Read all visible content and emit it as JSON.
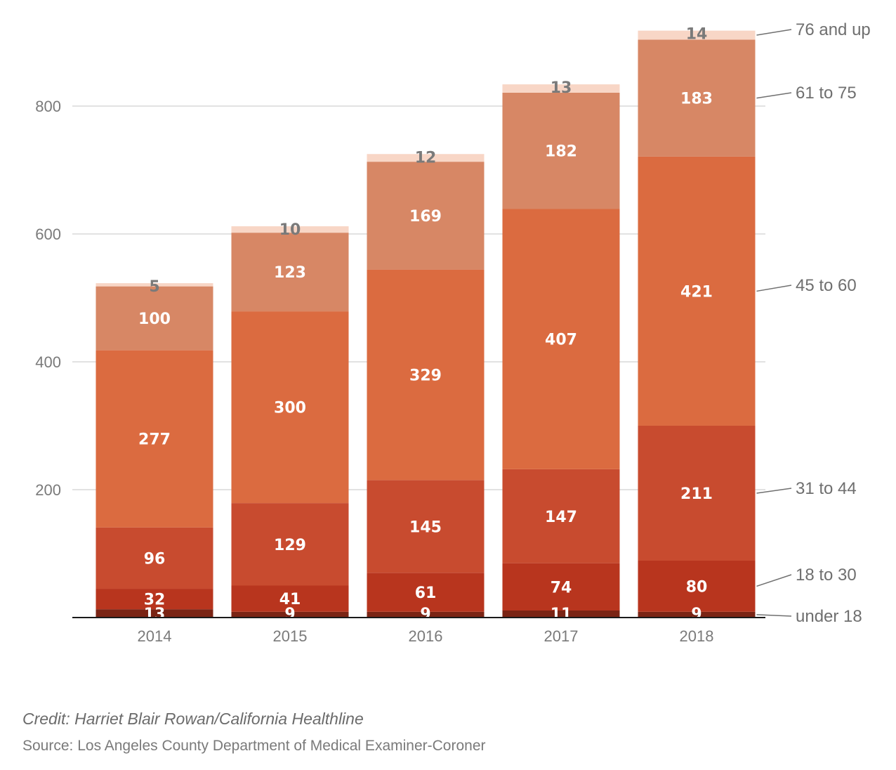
{
  "chart_data": {
    "type": "bar",
    "stacked": true,
    "categories": [
      "2014",
      "2015",
      "2016",
      "2017",
      "2018"
    ],
    "series": [
      {
        "name": "under 18",
        "values": [
          13,
          9,
          9,
          11,
          9
        ],
        "color": "#7a2414"
      },
      {
        "name": "18 to 30",
        "values": [
          32,
          41,
          61,
          74,
          80
        ],
        "color": "#b8351e"
      },
      {
        "name": "31 to 44",
        "values": [
          96,
          129,
          145,
          147,
          211
        ],
        "color": "#c84b2f"
      },
      {
        "name": "45 to 60",
        "values": [
          277,
          300,
          329,
          407,
          421
        ],
        "color": "#db6b40"
      },
      {
        "name": "61 to 75",
        "values": [
          100,
          123,
          169,
          182,
          183
        ],
        "color": "#d78765"
      },
      {
        "name": "76 and up",
        "values": [
          5,
          10,
          12,
          13,
          14
        ],
        "color": "#f8d6c6"
      }
    ],
    "yticks": [
      200,
      400,
      600,
      800
    ],
    "ylim": [
      0,
      920
    ],
    "grid": true,
    "legend": "right, aligned to 2018 bar segments"
  },
  "credit": "Credit: Harriet Blair Rowan/California Healthline",
  "source": "Source: Los Angeles County Department of Medical Examiner-Coroner"
}
